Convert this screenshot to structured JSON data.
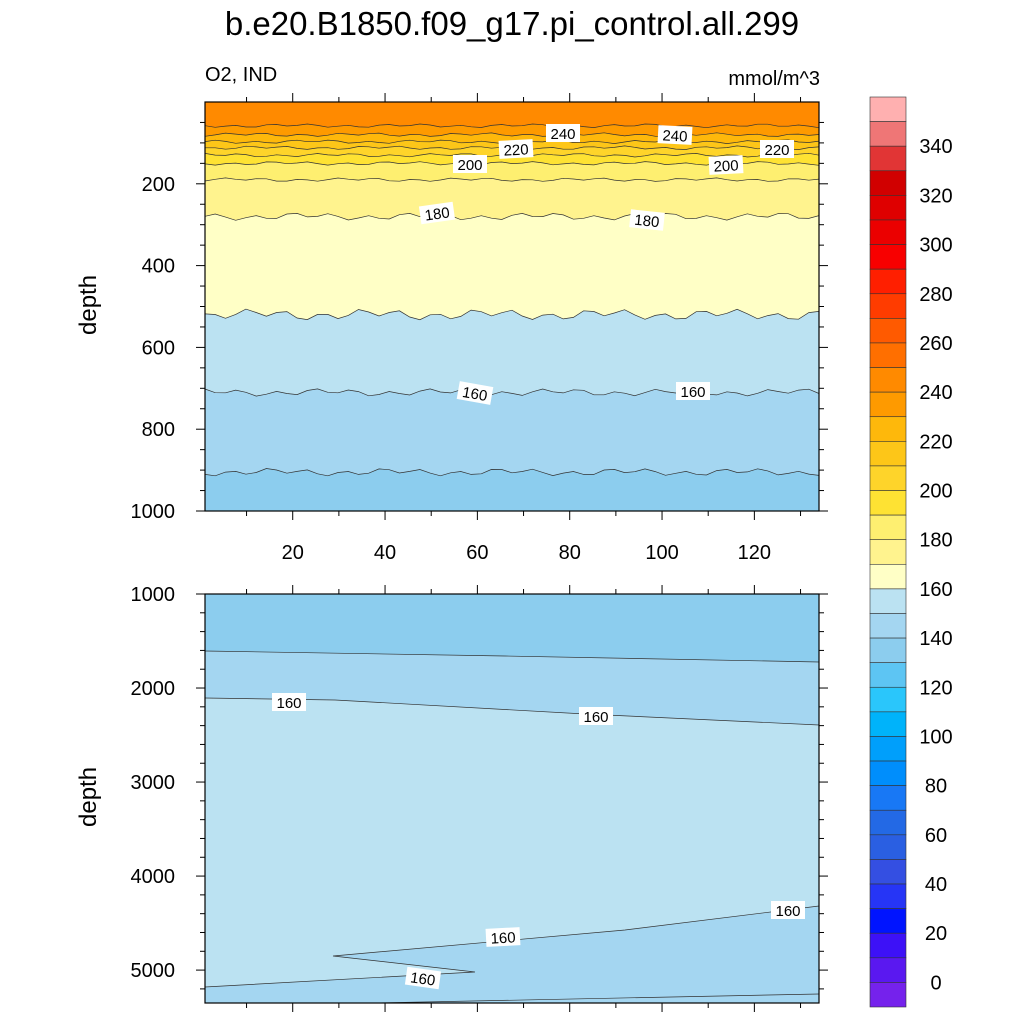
{
  "chart_data": {
    "title": "b.e20.B1850.f09_g17.pi_control.all.299",
    "left_subtitle": "O2, IND",
    "right_subtitle": "mmol/m^3",
    "type": "contour",
    "panels": [
      {
        "name": "upper",
        "xlim": [
          1,
          134
        ],
        "ylim": [
          1000,
          0
        ],
        "ylabel": "depth",
        "xticks": [
          20,
          40,
          60,
          80,
          100,
          120
        ],
        "xtick_labels": [
          "20",
          "40",
          "60",
          "80",
          "100",
          "120"
        ],
        "yticks": [
          200,
          400,
          600,
          800,
          1000
        ],
        "ytick_labels": [
          "200",
          "400",
          "600",
          "800",
          "1000"
        ],
        "contour_levels": [
          {
            "level": 250,
            "depth": 58,
            "fill": "#ff8a00"
          },
          {
            "level": 240,
            "depth": 80,
            "fill": "#fe9a00"
          },
          {
            "level": 230,
            "depth": 97,
            "fill": "#feb80b"
          },
          {
            "level": 220,
            "depth": 112,
            "fill": "#fdc618"
          },
          {
            "level": 210,
            "depth": 130,
            "fill": "#fed42a"
          },
          {
            "level": 200,
            "depth": 150,
            "fill": "#fee233"
          },
          {
            "level": 190,
            "depth": 190,
            "fill": "#feef70"
          },
          {
            "level": 180,
            "depth": 280,
            "fill": "#fff38e"
          },
          {
            "level": 170,
            "depth": 520,
            "fill": "#ffffc6"
          },
          {
            "level": 160,
            "depth": 710,
            "fill": "#bbe2f2"
          },
          {
            "level": 150,
            "depth": 905,
            "fill": "#a4d6f1"
          }
        ],
        "deepest_fill": "#8ccdee",
        "contour_labels": [
          "240",
          "240",
          "220",
          "220",
          "200",
          "200",
          "180",
          "180",
          "160",
          "160"
        ]
      },
      {
        "name": "lower",
        "xlim": [
          1,
          134
        ],
        "ylim": [
          5350,
          1000
        ],
        "ylabel": "depth",
        "yticks": [
          1000,
          2000,
          3000,
          4000,
          5000
        ],
        "ytick_labels": [
          "1000",
          "2000",
          "3000",
          "4000",
          "5000"
        ],
        "contour_labels": [
          "160",
          "160",
          "160",
          "160",
          "160"
        ]
      }
    ],
    "colorbar": {
      "levels": [
        0,
        10,
        20,
        30,
        40,
        50,
        60,
        70,
        80,
        90,
        100,
        110,
        120,
        130,
        140,
        150,
        160,
        170,
        180,
        190,
        200,
        210,
        220,
        230,
        240,
        250,
        260,
        270,
        280,
        290,
        300,
        310,
        320,
        330,
        340,
        350
      ],
      "tick_labels": [
        "0",
        "20",
        "40",
        "60",
        "80",
        "100",
        "120",
        "140",
        "160",
        "180",
        "200",
        "220",
        "240",
        "260",
        "280",
        "300",
        "320",
        "340"
      ],
      "colors": [
        "#ffb0b0",
        "#ef7676",
        "#e13535",
        "#d10000",
        "#df0000",
        "#eb0000",
        "#f80000",
        "#ff1f00",
        "#ff3c00",
        "#ff5a00",
        "#ff6f00",
        "#ff8a00",
        "#fe9a00",
        "#feb80b",
        "#fdc618",
        "#fed42a",
        "#fee233",
        "#feef70",
        "#fff38e",
        "#ffffc6",
        "#bbe2f2",
        "#a4d6f1",
        "#8ccdee",
        "#5dc5f3",
        "#2ac6fb",
        "#00b3fa",
        "#009ffb",
        "#008efc",
        "#1878f5",
        "#2369e5",
        "#2a5fe2",
        "#344fe2",
        "#2635f6",
        "#0014ff",
        "#3d11f7",
        "#5a18f0",
        "#7522ec"
      ]
    }
  }
}
